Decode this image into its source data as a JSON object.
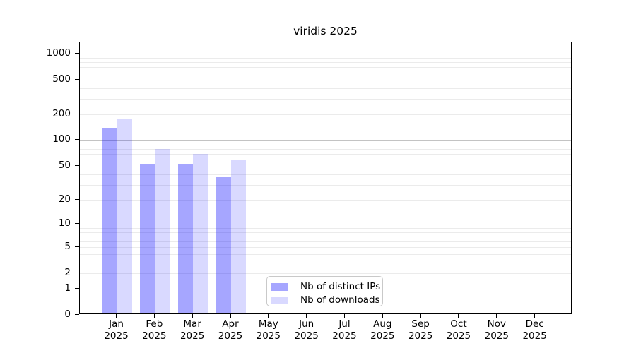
{
  "chart_data": {
    "type": "bar",
    "title": "viridis 2025",
    "categories": [
      "Jan",
      "Feb",
      "Mar",
      "Apr",
      "May",
      "Jun",
      "Jul",
      "Aug",
      "Sep",
      "Oct",
      "Nov",
      "Dec"
    ],
    "year_label": "2025",
    "series": [
      {
        "name": "Nb of distinct IPs",
        "color": "rgba(0,0,255,0.35)",
        "values": [
          137,
          54,
          53,
          38,
          null,
          null,
          null,
          null,
          null,
          null,
          null,
          null
        ]
      },
      {
        "name": "Nb of downloads",
        "color": "rgba(0,0,255,0.15)",
        "values": [
          176,
          80,
          70,
          60,
          null,
          null,
          null,
          null,
          null,
          null,
          null,
          null
        ]
      }
    ],
    "yscale": "log1p",
    "yticks": [
      0,
      1,
      2,
      5,
      10,
      20,
      50,
      100,
      200,
      500,
      1000
    ],
    "ylim": [
      0,
      1330
    ],
    "grid": true,
    "legend_position": "lower center-left",
    "colors": {
      "major_grid": "#c3c3c3",
      "minor_grid": "#ebebeb",
      "spine": "#000000",
      "text": "#000000",
      "background": "#ffffff"
    }
  }
}
